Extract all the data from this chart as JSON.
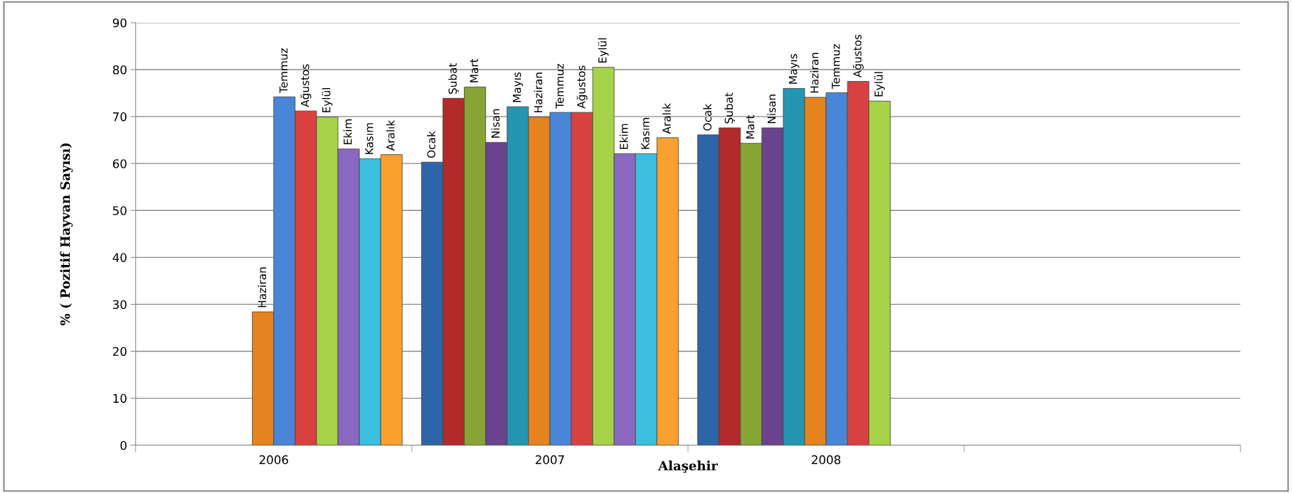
{
  "chart_data": {
    "type": "bar",
    "xlabel": "Alaşehir",
    "ylabel": "% ( Pozitif Hayvan Sayısı)",
    "categories": [
      "2006",
      "2007",
      "2008",
      null
    ],
    "ylim": [
      0,
      90
    ],
    "yticks": [
      0,
      10,
      20,
      30,
      40,
      50,
      60,
      70,
      80,
      90
    ],
    "grid": "y",
    "legend": false,
    "series": [
      {
        "name": "Ocak",
        "color": "#2e64a8",
        "values": [
          null,
          60.3,
          66.1,
          null
        ]
      },
      {
        "name": "Şubat",
        "color": "#b22a2a",
        "values": [
          null,
          73.9,
          67.6,
          null
        ]
      },
      {
        "name": "Mart",
        "color": "#86a534",
        "values": [
          null,
          76.3,
          64.3,
          null
        ]
      },
      {
        "name": "Nisan",
        "color": "#6a438e",
        "values": [
          null,
          64.5,
          67.6,
          null
        ]
      },
      {
        "name": "Mayıs",
        "color": "#2596b1",
        "values": [
          null,
          72.1,
          76.0,
          null
        ]
      },
      {
        "name": "Haziran",
        "color": "#e5841f",
        "values": [
          28.4,
          69.9,
          74.1,
          null
        ]
      },
      {
        "name": "Temmuz",
        "color": "#4a86d8",
        "values": [
          74.2,
          70.9,
          75.1,
          null
        ]
      },
      {
        "name": "Ağustos",
        "color": "#d94141",
        "values": [
          71.2,
          70.9,
          77.5,
          null
        ]
      },
      {
        "name": "Eylül",
        "color": "#a6d24a",
        "values": [
          69.9,
          80.5,
          73.3,
          null
        ]
      },
      {
        "name": "Ekim",
        "color": "#8a68bf",
        "values": [
          63.1,
          62.1,
          null,
          null
        ]
      },
      {
        "name": "Kasım",
        "color": "#3bbfdf",
        "values": [
          61.0,
          62.1,
          null,
          null
        ]
      },
      {
        "name": "Aralık",
        "color": "#f9a030",
        "values": [
          61.9,
          65.5,
          null,
          null
        ]
      }
    ]
  }
}
